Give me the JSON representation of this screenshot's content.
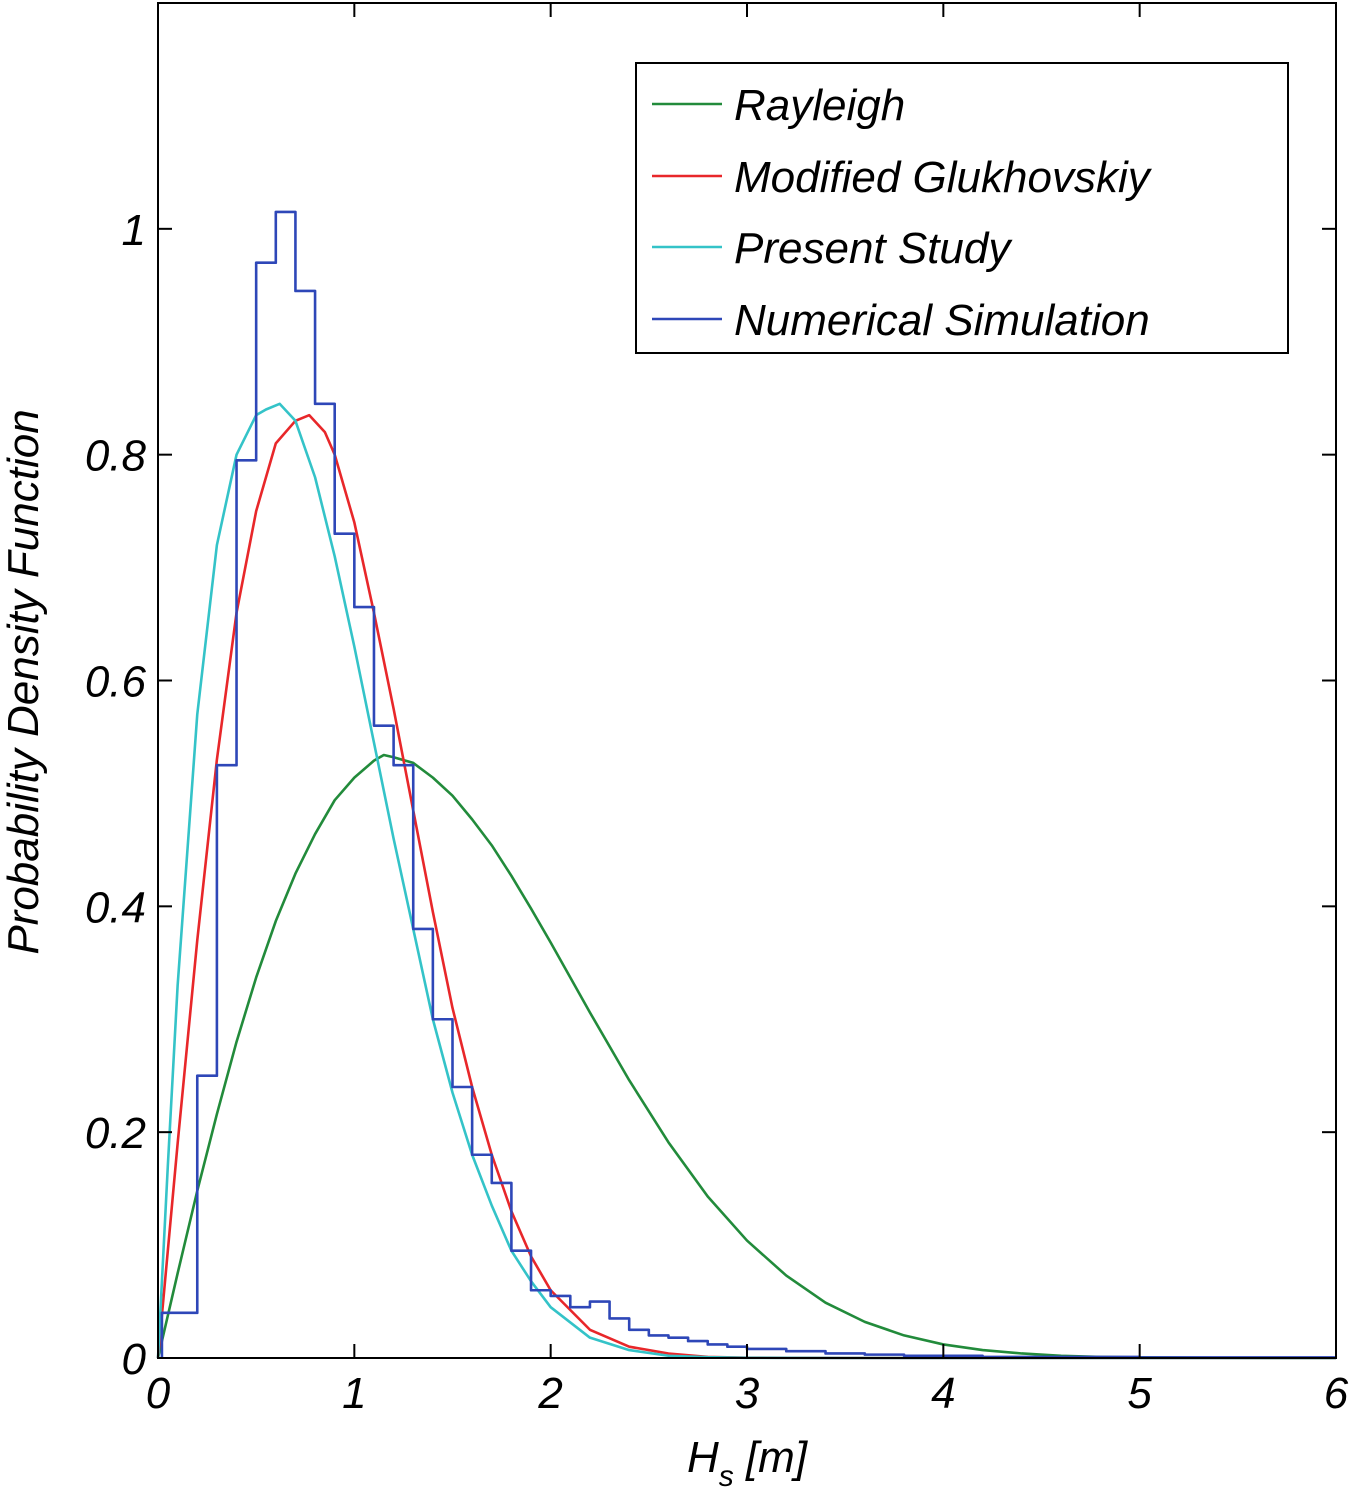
{
  "chart_data": {
    "type": "line",
    "title": "",
    "xlabel_main": "H",
    "xlabel_sub": "s",
    "xlabel_unit": " [m]",
    "ylabel": "Probability Density Function",
    "xlim": [
      0,
      6
    ],
    "ylim": [
      0,
      1.2
    ],
    "x_ticks": [
      0,
      1,
      2,
      3,
      4,
      5,
      6
    ],
    "x_tick_labels": [
      "0",
      "1",
      "2",
      "3",
      "4",
      "5",
      "6"
    ],
    "y_ticks": [
      0,
      0.2,
      0.4,
      0.6,
      0.8,
      1.0
    ],
    "y_tick_labels": [
      "0",
      "0.2",
      "0.4",
      "0.6",
      "0.8",
      "1"
    ],
    "grid": false,
    "legend_position": "top-right",
    "series": [
      {
        "name": "Rayleigh",
        "color": "#228b3b",
        "kind": "curve",
        "x": [
          0,
          0.1,
          0.2,
          0.3,
          0.4,
          0.5,
          0.6,
          0.7,
          0.8,
          0.9,
          1.0,
          1.1,
          1.15,
          1.2,
          1.3,
          1.4,
          1.5,
          1.6,
          1.7,
          1.8,
          1.9,
          2.0,
          2.2,
          2.4,
          2.6,
          2.8,
          3.0,
          3.2,
          3.4,
          3.6,
          3.8,
          4.0,
          4.2,
          4.4,
          4.6,
          4.8,
          5.0,
          5.5,
          6.0
        ],
        "y": [
          0,
          0.075,
          0.148,
          0.216,
          0.28,
          0.337,
          0.387,
          0.429,
          0.464,
          0.494,
          0.514,
          0.529,
          0.534,
          0.532,
          0.527,
          0.514,
          0.498,
          0.477,
          0.454,
          0.427,
          0.398,
          0.368,
          0.306,
          0.246,
          0.191,
          0.143,
          0.104,
          0.073,
          0.049,
          0.032,
          0.02,
          0.012,
          0.007,
          0.004,
          0.002,
          0.001,
          0.0005,
          0.0001,
          0
        ]
      },
      {
        "name": "Modified Glukhovskiy",
        "color": "#e8272a",
        "kind": "curve",
        "x": [
          0,
          0.1,
          0.2,
          0.3,
          0.4,
          0.5,
          0.6,
          0.7,
          0.77,
          0.85,
          0.9,
          1.0,
          1.1,
          1.2,
          1.3,
          1.4,
          1.5,
          1.6,
          1.7,
          1.8,
          1.9,
          2.0,
          2.2,
          2.4,
          2.6,
          2.8,
          3.0,
          3.5,
          6.0
        ],
        "y": [
          0,
          0.19,
          0.37,
          0.53,
          0.66,
          0.75,
          0.81,
          0.83,
          0.835,
          0.82,
          0.8,
          0.74,
          0.66,
          0.575,
          0.485,
          0.395,
          0.31,
          0.24,
          0.18,
          0.13,
          0.09,
          0.06,
          0.025,
          0.01,
          0.004,
          0.001,
          0.0003,
          0,
          0
        ]
      },
      {
        "name": "Present Study",
        "color": "#34c3c8",
        "kind": "curve",
        "x": [
          0,
          0.05,
          0.1,
          0.2,
          0.3,
          0.4,
          0.5,
          0.55,
          0.62,
          0.7,
          0.8,
          0.9,
          1.0,
          1.1,
          1.2,
          1.3,
          1.4,
          1.5,
          1.6,
          1.7,
          1.8,
          1.9,
          2.0,
          2.2,
          2.4,
          2.6,
          2.8,
          3.0,
          3.5,
          6.0
        ],
        "y": [
          0,
          0.17,
          0.33,
          0.57,
          0.72,
          0.8,
          0.835,
          0.84,
          0.845,
          0.83,
          0.78,
          0.71,
          0.63,
          0.545,
          0.46,
          0.38,
          0.3,
          0.235,
          0.18,
          0.135,
          0.095,
          0.068,
          0.045,
          0.018,
          0.007,
          0.002,
          0.0007,
          0.0002,
          0,
          0
        ]
      },
      {
        "name": "Numerical Simulation",
        "color": "#2e47b8",
        "kind": "step",
        "edges": [
          0.02,
          0.2,
          0.3,
          0.4,
          0.5,
          0.6,
          0.7,
          0.8,
          0.9,
          1.0,
          1.1,
          1.2,
          1.3,
          1.4,
          1.5,
          1.6,
          1.7,
          1.8,
          1.9,
          2.0,
          2.1,
          2.2,
          2.3,
          2.4,
          2.5,
          2.6,
          2.7,
          2.8,
          2.9,
          3.0,
          3.2,
          3.4,
          3.6,
          3.8,
          4.0,
          4.2,
          4.5,
          5.0,
          6.0
        ],
        "values": [
          0.04,
          0.25,
          0.525,
          0.795,
          0.97,
          1.015,
          0.945,
          0.845,
          0.73,
          0.665,
          0.56,
          0.525,
          0.38,
          0.3,
          0.24,
          0.18,
          0.155,
          0.095,
          0.06,
          0.055,
          0.045,
          0.05,
          0.035,
          0.025,
          0.02,
          0.018,
          0.015,
          0.012,
          0.01,
          0.008,
          0.006,
          0.004,
          0.003,
          0.002,
          0.002,
          0.001,
          0.001,
          0.0005
        ]
      }
    ]
  }
}
